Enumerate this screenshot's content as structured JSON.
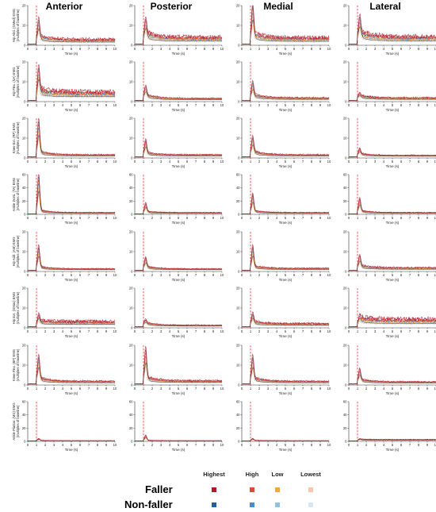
{
  "chart_data": {
    "type": "line",
    "columns": [
      "Anterior",
      "Posterior",
      "Medial",
      "Lateral"
    ],
    "rows": [
      {
        "ylabel": [
          "Hip Abd. (GMed) EMG",
          "(multiples of baseline)"
        ],
        "ylim": [
          0,
          20
        ],
        "yticks": [
          0,
          10,
          20
        ]
      },
      {
        "ylabel": [
          "Hip Flex. (SA) EMG",
          "(multiples of baseline)"
        ],
        "ylim": [
          0,
          20
        ],
        "yticks": [
          0,
          10,
          20
        ]
      },
      {
        "ylabel": [
          "Knee Ext. (RF) EMG",
          "(multiples of baseline)"
        ],
        "ylim": [
          0,
          20
        ],
        "yticks": [
          0,
          10,
          20
        ]
      },
      {
        "ylabel": [
          "Ankle Dorsi. (TA) EMG",
          "(multiples of baseline)"
        ],
        "ylim": [
          0,
          60
        ],
        "yticks": [
          0,
          20,
          40,
          60
        ]
      },
      {
        "ylabel": [
          "Hip Add. (AM) EMG",
          "(multiples of baseline)"
        ],
        "ylim": [
          0,
          20
        ],
        "yticks": [
          0,
          10,
          20
        ]
      },
      {
        "ylabel": [
          "Hip Ext. (GMax) EMG",
          "(multiples of baseline)"
        ],
        "ylim": [
          0,
          20
        ],
        "yticks": [
          0,
          10,
          20
        ]
      },
      {
        "ylabel": [
          "Knee Flex. (BF) EMG",
          "(multiples of baseline)"
        ],
        "ylim": [
          0,
          20
        ],
        "yticks": [
          0,
          10,
          20
        ]
      },
      {
        "ylabel": [
          "Ankle Plantar. (MG) EMG",
          "(multiples of baseline)"
        ],
        "ylim": [
          0,
          60
        ],
        "yticks": [
          0,
          20,
          40,
          60
        ]
      }
    ],
    "xlabel": "Time (s)",
    "xlim": [
      0,
      10
    ],
    "xticks": [
      0,
      1,
      2,
      3,
      4,
      5,
      6,
      7,
      8,
      9,
      10
    ],
    "perturbation_time_s": 1,
    "peaks": [
      [
        [
          10,
          3,
          4.5
        ],
        [
          9,
          4,
          6.5
        ],
        [
          17,
          4,
          6
        ],
        [
          10,
          4.5,
          7
        ]
      ],
      [
        [
          14,
          3,
          8
        ],
        [
          5,
          3,
          2
        ],
        [
          7,
          3,
          2.5
        ],
        [
          2,
          2,
          2.5
        ]
      ],
      [
        [
          17,
          3,
          2
        ],
        [
          7,
          2,
          2
        ],
        [
          8,
          3,
          2
        ],
        [
          3,
          1.5,
          1.5
        ]
      ],
      [
        [
          57,
          6,
          4
        ],
        [
          14,
          3,
          4
        ],
        [
          27,
          5,
          4
        ],
        [
          20,
          5,
          4
        ]
      ],
      [
        [
          11,
          2,
          1.5
        ],
        [
          5,
          2,
          1.5
        ],
        [
          11,
          2,
          2
        ],
        [
          6,
          2,
          2.5
        ]
      ],
      [
        [
          5,
          1,
          5
        ],
        [
          2,
          2,
          1.5
        ],
        [
          5,
          2,
          3
        ],
        [
          3,
          2,
          7
        ]
      ],
      [
        [
          12,
          3,
          2.5
        ],
        [
          16,
          3,
          3
        ],
        [
          12,
          3,
          2.5
        ],
        [
          6,
          2,
          2
        ]
      ],
      [
        [
          3,
          1,
          1
        ],
        [
          8,
          1,
          1
        ],
        [
          3,
          1,
          1
        ],
        [
          2,
          1,
          4
        ]
      ]
    ],
    "series": [
      {
        "group": "Faller",
        "level": "Highest",
        "color": "#b2182b"
      },
      {
        "group": "Faller",
        "level": "High",
        "color": "#e8462e"
      },
      {
        "group": "Faller",
        "level": "Low",
        "color": "#f4a83a"
      },
      {
        "group": "Faller",
        "level": "Lowest",
        "color": "#f8c6a8"
      },
      {
        "group": "Non-faller",
        "level": "Highest",
        "color": "#1f5fa8"
      },
      {
        "group": "Non-faller",
        "level": "High",
        "color": "#3d8fd6"
      },
      {
        "group": "Non-faller",
        "level": "Low",
        "color": "#8cc2e6"
      },
      {
        "group": "Non-faller",
        "level": "Lowest",
        "color": "#d6e6f2"
      }
    ],
    "perturbation_line_color": "#e8312a",
    "mean_line_color": "#333333"
  },
  "legend": {
    "levels": [
      "Highest",
      "High",
      "Low",
      "Lowest"
    ],
    "groups": [
      "Faller",
      "Non-faller"
    ]
  }
}
